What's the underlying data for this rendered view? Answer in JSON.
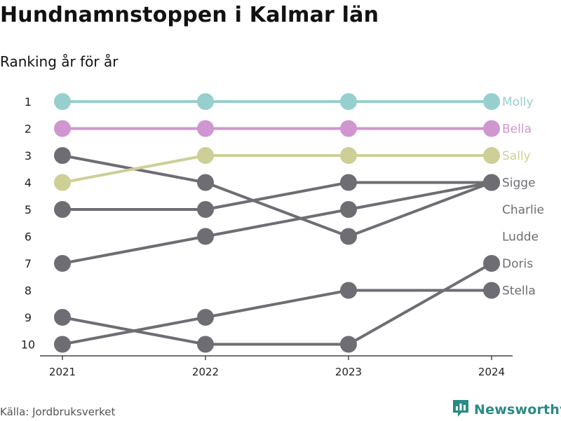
{
  "title": "Hundnamnstoppen i Kalmar län",
  "subtitle": "Ranking år för år",
  "source": "Källa: Jordbruksverket",
  "brand": {
    "name": "Newsworthy",
    "icon": "bar-chart-logo-icon"
  },
  "colors": {
    "Molly": "#96cfcd",
    "Bella": "#cf96cf",
    "Sally": "#cdcf96",
    "default": "#6e6d74"
  },
  "chart_data": {
    "type": "line",
    "chart_subtype": "bump",
    "x": [
      "2021",
      "2022",
      "2023",
      "2024"
    ],
    "y_axis": {
      "reversed": true,
      "ylim": [
        1,
        10
      ],
      "ticks": [
        "1",
        "2",
        "3",
        "4",
        "5",
        "6",
        "7",
        "8",
        "9",
        "10"
      ]
    },
    "grid": false,
    "legend": "end-labels",
    "end_labels": [
      "Molly",
      "Bella",
      "Sally",
      "Sigge",
      "Charlie",
      "Ludde",
      "Doris",
      "Stella"
    ],
    "series": [
      {
        "name": "Molly",
        "values": [
          1,
          1,
          1,
          1
        ],
        "highlight": true
      },
      {
        "name": "Bella",
        "values": [
          2,
          2,
          2,
          2
        ],
        "highlight": true
      },
      {
        "name": "Sally",
        "values": [
          4,
          3,
          3,
          3
        ],
        "highlight": true
      },
      {
        "name": "Sigge",
        "values": [
          3,
          4,
          6,
          4
        ],
        "highlight": false
      },
      {
        "name": "Charlie",
        "values": [
          5,
          5,
          4,
          4
        ],
        "highlight": false
      },
      {
        "name": "Ludde",
        "values": [
          7,
          6,
          5,
          4
        ],
        "highlight": false
      },
      {
        "name": "Doris",
        "values": [
          9,
          10,
          10,
          7
        ],
        "highlight": false
      },
      {
        "name": "Stella",
        "values": [
          10,
          9,
          8,
          8
        ],
        "highlight": false
      }
    ]
  }
}
